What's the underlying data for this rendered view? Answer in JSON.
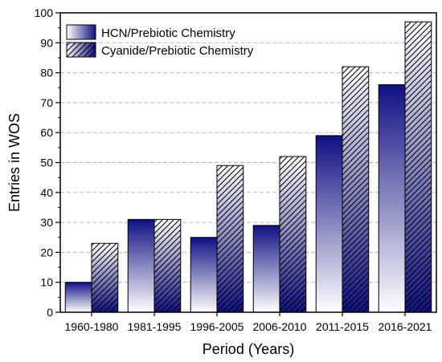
{
  "chart_data": {
    "type": "bar",
    "title": "",
    "xlabel": "Period (Years)",
    "ylabel": "Entries in WOS",
    "categories": [
      "1960-1980",
      "1981-1995",
      "1996-2005",
      "2006-2010",
      "2011-2015",
      "2016-2021"
    ],
    "series": [
      {
        "name": "HCN/Prebiotic Chemistry",
        "values": [
          10,
          31,
          25,
          29,
          59,
          76
        ],
        "fill": "vertical-gradient",
        "color": "#101082"
      },
      {
        "name": "Cyanide/Prebiotic Chemistry",
        "values": [
          23,
          31,
          49,
          52,
          82,
          97
        ],
        "fill": "vertical-gradient-hatched",
        "color": "#101082"
      }
    ],
    "ylim": [
      0,
      100
    ],
    "yticks": [
      0,
      10,
      20,
      30,
      40,
      50,
      60,
      70,
      80,
      90,
      100
    ],
    "grid": "horizontal-dashed",
    "legend_position": "top-left"
  }
}
